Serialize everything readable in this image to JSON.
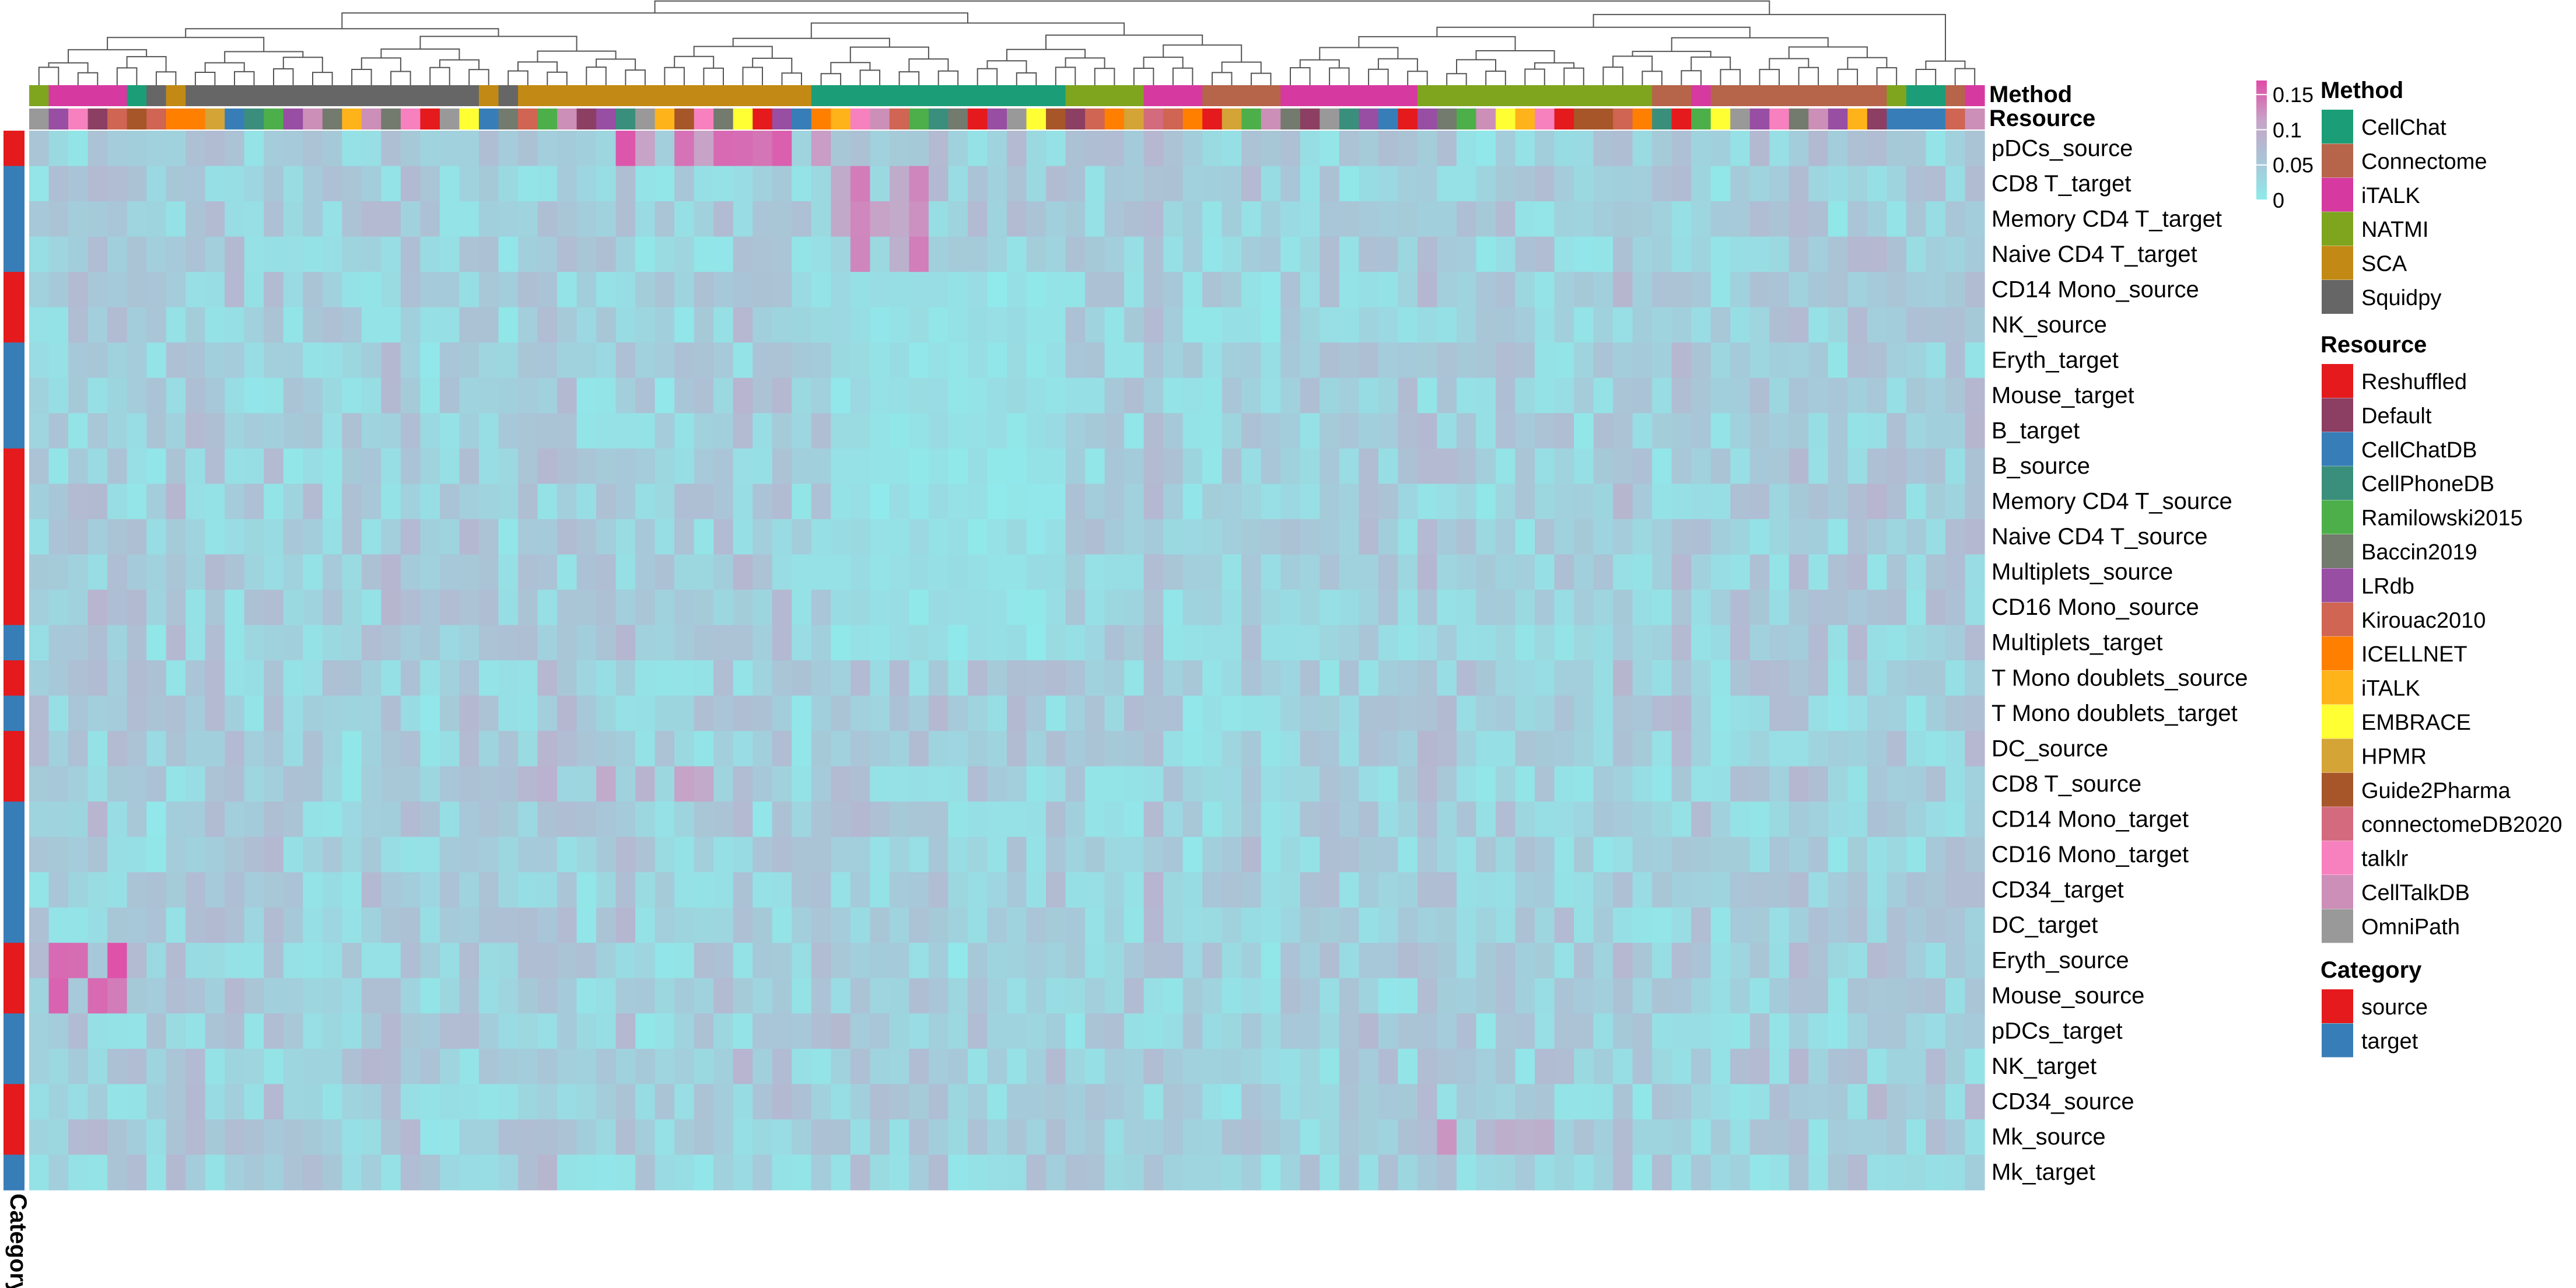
{
  "chart_data": {
    "type": "heatmap",
    "title": "",
    "rows": [
      "pDCs_source",
      "CD8 T_target",
      "Memory CD4 T_target",
      "Naive CD4 T_target",
      "CD14 Mono_source",
      "NK_source",
      "Eryth_target",
      "Mouse_target",
      "B_target",
      "B_source",
      "Memory CD4 T_source",
      "Naive CD4 T_source",
      "Multiplets_source",
      "CD16 Mono_source",
      "Multiplets_target",
      "T Mono doublets_source",
      "T Mono doublets_target",
      "DC_source",
      "CD8 T_source",
      "CD14 Mono_target",
      "CD16 Mono_target",
      "CD34_target",
      "DC_target",
      "Eryth_source",
      "Mouse_source",
      "pDCs_target",
      "NK_target",
      "CD34_source",
      "Mk_source",
      "Mk_target"
    ],
    "row_category": [
      "source",
      "target",
      "target",
      "target",
      "source",
      "source",
      "target",
      "target",
      "target",
      "source",
      "source",
      "source",
      "source",
      "source",
      "target",
      "source",
      "target",
      "source",
      "source",
      "target",
      "target",
      "target",
      "target",
      "source",
      "source",
      "target",
      "target",
      "source",
      "source",
      "target"
    ],
    "n_columns": 100,
    "column_method": [
      "NATMI",
      "iTALK",
      "iTALK",
      "iTALK",
      "iTALK",
      "CellChat",
      "Squidpy",
      "SCA",
      "Squidpy",
      "Squidpy",
      "Squidpy",
      "Squidpy",
      "Squidpy",
      "Squidpy",
      "Squidpy",
      "Squidpy",
      "Squidpy",
      "Squidpy",
      "Squidpy",
      "Squidpy",
      "Squidpy",
      "Squidpy",
      "Squidpy",
      "SCA",
      "Squidpy",
      "SCA",
      "SCA",
      "SCA",
      "SCA",
      "SCA",
      "SCA",
      "SCA",
      "SCA",
      "SCA",
      "SCA",
      "SCA",
      "SCA",
      "SCA",
      "SCA",
      "SCA",
      "CellChat",
      "CellChat",
      "CellChat",
      "CellChat",
      "CellChat",
      "CellChat",
      "CellChat",
      "CellChat",
      "CellChat",
      "CellChat",
      "CellChat",
      "CellChat",
      "CellChat",
      "NATMI",
      "NATMI",
      "NATMI",
      "NATMI",
      "iTALK",
      "iTALK",
      "iTALK",
      "Connectome",
      "Connectome",
      "Connectome",
      "Connectome",
      "iTALK",
      "iTALK",
      "iTALK",
      "iTALK",
      "iTALK",
      "iTALK",
      "iTALK",
      "NATMI",
      "NATMI",
      "NATMI",
      "NATMI",
      "NATMI",
      "NATMI",
      "NATMI",
      "NATMI",
      "NATMI",
      "NATMI",
      "NATMI",
      "NATMI",
      "Connectome",
      "Connectome",
      "iTALK",
      "Connectome",
      "Connectome",
      "Connectome",
      "Connectome",
      "Connectome",
      "Connectome",
      "Connectome",
      "Connectome",
      "Connectome",
      "NATMI",
      "CellChat",
      "CellChat",
      "Connectome",
      "iTALK"
    ],
    "column_resource": [
      "OmniPath",
      "LRdb",
      "talklr",
      "Default",
      "Kirouac2010",
      "Guide2Pharma",
      "Kirouac2010",
      "ICELLNET",
      "ICELLNET",
      "HPMR",
      "CellChatDB",
      "CellPhoneDB",
      "Ramilowski2015",
      "LRdb",
      "CellTalkDB",
      "Baccin2019",
      "iTALK",
      "CellTalkDB",
      "Baccin2019",
      "talklr",
      "Reshuffled",
      "OmniPath",
      "EMBRACE",
      "CellChatDB",
      "Baccin2019",
      "Kirouac2010",
      "Ramilowski2015",
      "CellTalkDB",
      "Default",
      "LRdb",
      "CellPhoneDB",
      "OmniPath",
      "iTALK",
      "Guide2Pharma",
      "talklr",
      "Baccin2019",
      "EMBRACE",
      "Reshuffled",
      "LRdb",
      "CellChatDB",
      "ICELLNET",
      "iTALK",
      "talklr",
      "CellTalkDB",
      "Kirouac2010",
      "Ramilowski2015",
      "CellPhoneDB",
      "Baccin2019",
      "Reshuffled",
      "LRdb",
      "OmniPath",
      "EMBRACE",
      "Guide2Pharma",
      "Default",
      "Kirouac2010",
      "ICELLNET",
      "HPMR",
      "connectomeDB2020",
      "Kirouac2010",
      "ICELLNET",
      "Reshuffled",
      "HPMR",
      "Ramilowski2015",
      "CellTalkDB",
      "Baccin2019",
      "Default",
      "OmniPath",
      "CellPhoneDB",
      "LRdb",
      "CellChatDB",
      "Reshuffled",
      "LRdb",
      "Baccin2019",
      "Ramilowski2015",
      "CellTalkDB",
      "EMBRACE",
      "iTALK",
      "talklr",
      "Reshuffled",
      "Guide2Pharma",
      "Guide2Pharma",
      "Kirouac2010",
      "ICELLNET",
      "CellPhoneDB",
      "Reshuffled",
      "Ramilowski2015",
      "EMBRACE",
      "OmniPath",
      "LRdb",
      "talklr",
      "Baccin2019",
      "CellTalkDB",
      "LRdb",
      "iTALK",
      "Default",
      "CellChatDB",
      "CellChatDB",
      "CellChatDB",
      "Kirouac2010",
      "CellTalkDB"
    ],
    "color_scale": {
      "min": 0,
      "max": 0.17,
      "colors": [
        "#8eebeb",
        "#a9c5d6",
        "#c7a3c7",
        "#e04aa7"
      ],
      "ticks": [
        "0.15",
        "0.1",
        "0.05",
        "0"
      ],
      "tick_values": [
        0.15,
        0.1,
        0.05,
        0
      ]
    }
  },
  "legends": {
    "method": {
      "title": "Method",
      "entries": [
        {
          "label": "CellChat",
          "color": "#1b9e77"
        },
        {
          "label": "Connectome",
          "color": "#b6644a"
        },
        {
          "label": "iTALK",
          "color": "#d63aa0"
        },
        {
          "label": "NATMI",
          "color": "#7fa51f"
        },
        {
          "label": "SCA",
          "color": "#c28a14"
        },
        {
          "label": "Squidpy",
          "color": "#666666"
        }
      ]
    },
    "resource": {
      "title": "Resource",
      "entries": [
        {
          "label": "Reshuffled",
          "color": "#e41a1c"
        },
        {
          "label": "Default",
          "color": "#8c3f62"
        },
        {
          "label": "CellChatDB",
          "color": "#377eb8"
        },
        {
          "label": "CellPhoneDB",
          "color": "#3a8f7c"
        },
        {
          "label": "Ramilowski2015",
          "color": "#4daf4a"
        },
        {
          "label": "Baccin2019",
          "color": "#737a6e"
        },
        {
          "label": "LRdb",
          "color": "#984ea3"
        },
        {
          "label": "Kirouac2010",
          "color": "#cf6552"
        },
        {
          "label": "ICELLNET",
          "color": "#ff7f00"
        },
        {
          "label": "iTALK",
          "color": "#ffb31a"
        },
        {
          "label": "EMBRACE",
          "color": "#ffff33"
        },
        {
          "label": "HPMR",
          "color": "#d4a437"
        },
        {
          "label": "Guide2Pharma",
          "color": "#a65628"
        },
        {
          "label": "connectomeDB2020",
          "color": "#d46a7e"
        },
        {
          "label": "talklr",
          "color": "#f781bf"
        },
        {
          "label": "CellTalkDB",
          "color": "#cc8fb8"
        },
        {
          "label": "OmniPath",
          "color": "#999999"
        }
      ]
    },
    "category": {
      "title": "Category",
      "entries": [
        {
          "label": "source",
          "color": "#e41a1c"
        },
        {
          "label": "target",
          "color": "#377eb8"
        }
      ]
    }
  },
  "annotation_labels": {
    "method": "Method",
    "resource": "Resource",
    "category": "Category"
  }
}
